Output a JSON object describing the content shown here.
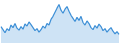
{
  "chart_data": {
    "type": "area",
    "color": "#3d8fd6",
    "x": [
      0,
      2,
      4,
      6,
      8,
      10,
      12,
      14,
      16,
      18,
      20,
      22,
      24,
      26,
      28,
      30,
      32,
      34,
      36,
      38,
      40,
      42,
      44,
      46,
      48,
      50,
      52,
      54,
      56,
      58,
      60,
      62,
      64,
      66,
      68,
      70,
      72,
      74,
      76,
      78,
      80,
      82,
      84,
      86,
      88,
      90,
      92,
      94,
      96,
      98,
      100,
      102,
      104,
      106,
      108,
      110,
      112,
      114,
      116,
      118
    ],
    "values": [
      52,
      46,
      40,
      48,
      44,
      55,
      50,
      58,
      49,
      45,
      52,
      47,
      57,
      53,
      61,
      56,
      50,
      44,
      48,
      41,
      46,
      53,
      49,
      58,
      55,
      66,
      72,
      80,
      88,
      95,
      84,
      78,
      86,
      91,
      82,
      74,
      68,
      62,
      70,
      64,
      72,
      60,
      55,
      63,
      58,
      50,
      46,
      54,
      49,
      57,
      52,
      44,
      48,
      41,
      46,
      50,
      43,
      38,
      42,
      37
    ],
    "xlim": [
      0,
      118
    ],
    "ylim": [
      20,
      100
    ],
    "grid": false,
    "tick_labels": false
  }
}
